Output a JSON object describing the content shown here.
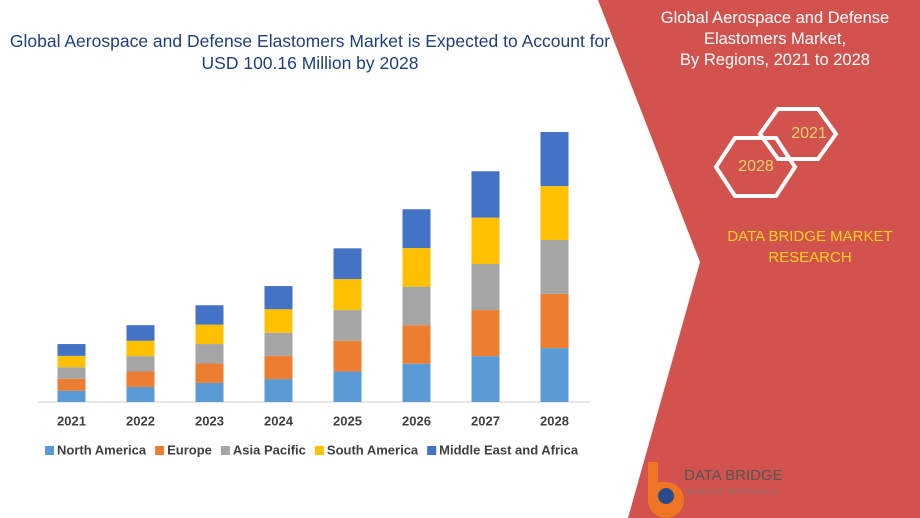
{
  "chart_data": {
    "type": "bar",
    "stacked": true,
    "title": "Global Aerospace and Defense Elastomers Market is Expected to Account for USD 100.16 Million by 2028",
    "categories": [
      "2021",
      "2022",
      "2023",
      "2024",
      "2025",
      "2026",
      "2027",
      "2028"
    ],
    "series": [
      {
        "name": "North America",
        "color": "#5b9bd5",
        "values": [
          4.2,
          5.6,
          7.1,
          8.5,
          11.3,
          14.2,
          17.0,
          20.0
        ]
      },
      {
        "name": "Europe",
        "color": "#ed7d31",
        "values": [
          4.4,
          5.7,
          7.2,
          8.6,
          11.4,
          14.3,
          17.1,
          20.1
        ]
      },
      {
        "name": "Asia Pacific",
        "color": "#a5a5a5",
        "values": [
          4.3,
          5.7,
          7.2,
          8.6,
          11.4,
          14.3,
          17.1,
          20.0
        ]
      },
      {
        "name": "South America",
        "color": "#ffc000",
        "values": [
          4.2,
          5.7,
          7.2,
          8.7,
          11.5,
          14.3,
          17.2,
          20.0
        ]
      },
      {
        "name": "Middle East and Africa",
        "color": "#4472c4",
        "values": [
          4.4,
          5.8,
          7.2,
          8.6,
          11.4,
          14.4,
          17.2,
          20.06
        ]
      }
    ]
  },
  "panel": {
    "title_lines": [
      "Global Aerospace and Defense",
      "Elastomers Market,",
      "By Regions, 2021 to 2028"
    ],
    "hex_labels": [
      "2021",
      "2028"
    ],
    "brand": "DATA BRIDGE MARKET RESEARCH"
  },
  "logo": {
    "name": "DATA BRIDGE",
    "tagline": "MARKET RESEARCH"
  }
}
